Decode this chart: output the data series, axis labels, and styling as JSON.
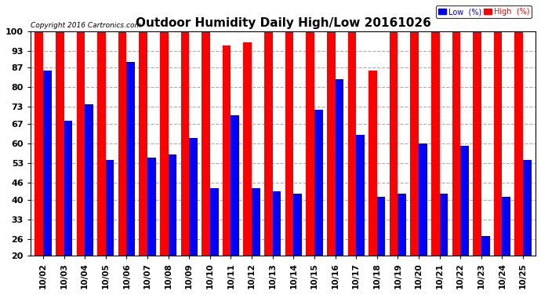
{
  "title": "Outdoor Humidity Daily High/Low 20161026",
  "copyright": "Copyright 2016 Cartronics.com",
  "dates": [
    "10/02",
    "10/03",
    "10/04",
    "10/05",
    "10/06",
    "10/07",
    "10/08",
    "10/09",
    "10/10",
    "10/11",
    "10/12",
    "10/13",
    "10/14",
    "10/15",
    "10/16",
    "10/17",
    "10/18",
    "10/19",
    "10/20",
    "10/21",
    "10/22",
    "10/23",
    "10/24",
    "10/25"
  ],
  "high": [
    100,
    100,
    100,
    100,
    100,
    100,
    100,
    100,
    100,
    95,
    96,
    100,
    100,
    100,
    100,
    100,
    86,
    100,
    100,
    100,
    100,
    100,
    100,
    100
  ],
  "low": [
    86,
    68,
    74,
    54,
    89,
    55,
    56,
    62,
    44,
    70,
    44,
    43,
    42,
    72,
    83,
    63,
    41,
    42,
    60,
    42,
    59,
    27,
    41,
    54
  ],
  "ylim": [
    20,
    100
  ],
  "yticks": [
    20,
    26,
    33,
    40,
    46,
    53,
    60,
    67,
    73,
    80,
    87,
    93,
    100
  ],
  "bg_color": "#ffffff",
  "high_color": "#ff0000",
  "low_color": "#0000ff",
  "grid_color": "#aaaaaa",
  "title_fontsize": 11,
  "legend_label_low": "Low  (%)",
  "legend_label_high": "High  (%)"
}
